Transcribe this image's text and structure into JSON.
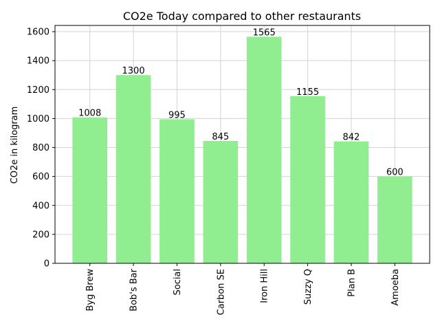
{
  "chart_data": {
    "type": "bar",
    "title": "CO2e Today compared to other restaurants",
    "xlabel": "",
    "ylabel": "CO2e in kilogram",
    "categories": [
      "Byg Brew",
      "Bob's Bar",
      "Social",
      "Carbon SE",
      "Iron Hill",
      "Suzzy Q",
      "Plan B",
      "Amoeba"
    ],
    "values": [
      1008,
      1300,
      995,
      845,
      1565,
      1155,
      842,
      600
    ],
    "data_labels": [
      "1008",
      "1300",
      "995",
      "845",
      "1565",
      "1155",
      "842",
      "600"
    ],
    "ylim": [
      0,
      1643
    ],
    "yticks": [
      0,
      200,
      400,
      600,
      800,
      1000,
      1200,
      1400,
      1600
    ],
    "ytick_labels": [
      "0",
      "200",
      "400",
      "600",
      "800",
      "1000",
      "1200",
      "1400",
      "1600"
    ],
    "grid": true,
    "bar_color": "#90ee90",
    "grid_color": "#d3d3d3"
  }
}
